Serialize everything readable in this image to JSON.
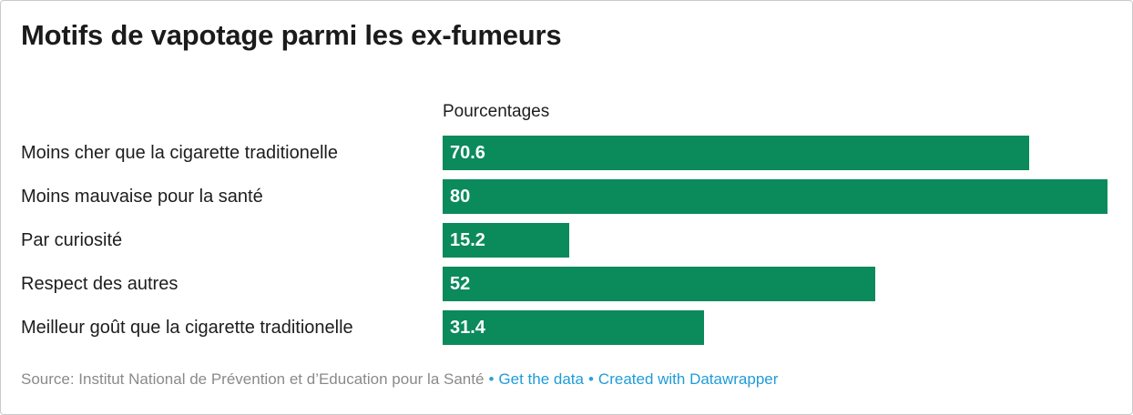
{
  "header": {
    "title": "Motifs de vapotage parmi les ex-fumeurs"
  },
  "chart_data": {
    "type": "bar",
    "orientation": "horizontal",
    "title": "Motifs de vapotage parmi les ex-fumeurs",
    "value_axis_label": "Pourcentages",
    "categories": [
      "Moins cher que la cigarette traditionelle",
      "Moins mauvaise pour la santé",
      "Par curiosité",
      "Respect des autres",
      "Meilleur goût que la cigarette traditionelle"
    ],
    "values": [
      70.6,
      80,
      15.2,
      52,
      31.4
    ],
    "xlim": [
      0,
      80
    ],
    "grid": false,
    "legend": false,
    "bar_color": "#0b8a5c",
    "value_label_color": "#ffffff",
    "value_labels_inside_bars": true
  },
  "footer": {
    "source": "Source: Institut National de Prévention et d’Education pour la Santé",
    "bullet": "•",
    "get_data_label": "Get the data",
    "created_label": "Created with Datawrapper",
    "link_color": "#1f9cd8"
  }
}
